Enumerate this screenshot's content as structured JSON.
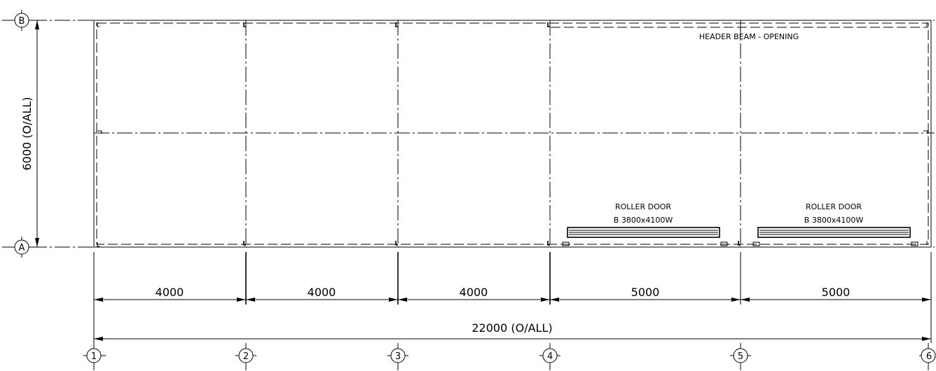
{
  "grid_rows": [
    {
      "id": "row-b",
      "label": "B"
    },
    {
      "id": "row-a",
      "label": "A"
    }
  ],
  "grid_columns": [
    {
      "id": "col-1",
      "label": "1"
    },
    {
      "id": "col-2",
      "label": "2"
    },
    {
      "id": "col-3",
      "label": "3"
    },
    {
      "id": "col-4",
      "label": "4"
    },
    {
      "id": "col-5",
      "label": "5"
    },
    {
      "id": "col-6",
      "label": "6"
    }
  ],
  "dimensions": {
    "vertical_overall": "6000 (O/ALL)",
    "bays": [
      "4000",
      "4000",
      "4000",
      "5000",
      "5000"
    ],
    "horizontal_overall": "22000 (O/ALL)"
  },
  "annotations": {
    "header_beam": "HEADER BEAM - OPENING",
    "doors": [
      {
        "title": "ROLLER DOOR",
        "spec": "B 3800x4100W"
      },
      {
        "title": "ROLLER DOOR",
        "spec": "B 3800x4100W"
      }
    ]
  }
}
